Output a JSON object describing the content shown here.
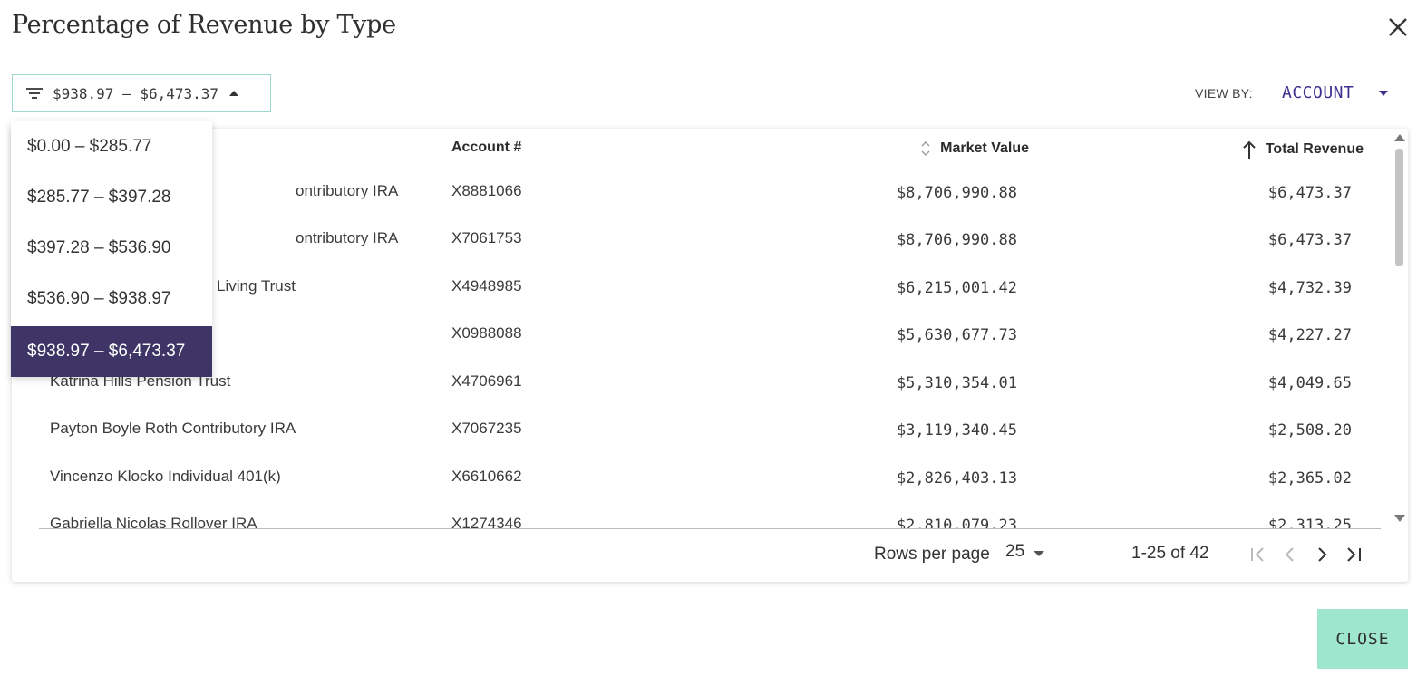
{
  "dialog": {
    "title": "Percentage of Revenue by Type",
    "close_label": "CLOSE"
  },
  "filter": {
    "selected_range": "$938.97 – $6,473.37",
    "options": [
      {
        "label": "$0.00 – $285.77",
        "selected": false
      },
      {
        "label": "$285.77 – $397.28",
        "selected": false
      },
      {
        "label": "$397.28 – $536.90",
        "selected": false
      },
      {
        "label": "$536.90 – $938.97",
        "selected": false
      },
      {
        "label": "$938.97 – $6,473.37",
        "selected": true
      }
    ]
  },
  "view_by": {
    "label": "VIEW BY:",
    "value": "ACCOUNT"
  },
  "table": {
    "headers": {
      "account": "Account #",
      "market_value": "Market Value",
      "total_revenue": "Total Revenue"
    },
    "rows": [
      {
        "name": "ontributory IRA",
        "account": "X8881066",
        "market_value": "$8,706,990.88",
        "total_revenue": "$6,473.37"
      },
      {
        "name": "ontributory IRA",
        "account": "X7061753",
        "market_value": "$8,706,990.88",
        "total_revenue": "$6,473.37"
      },
      {
        "name": "Living Trust",
        "account": "X4948985",
        "market_value": "$6,215,001.42",
        "total_revenue": "$4,732.39"
      },
      {
        "name": "",
        "account": "X0988088",
        "market_value": "$5,630,677.73",
        "total_revenue": "$4,227.27"
      },
      {
        "name": "Katrina Hills Pension Trust",
        "account": "X4706961",
        "market_value": "$5,310,354.01",
        "total_revenue": "$4,049.65"
      },
      {
        "name": "Payton Boyle Roth Contributory IRA",
        "account": "X7067235",
        "market_value": "$3,119,340.45",
        "total_revenue": "$2,508.20"
      },
      {
        "name": "Vincenzo Klocko Individual 401(k)",
        "account": "X6610662",
        "market_value": "$2,826,403.13",
        "total_revenue": "$2,365.02"
      },
      {
        "name": "Gabriella Nicolas Rollover IRA",
        "account": "X1274346",
        "market_value": "$2,810,079.23",
        "total_revenue": "$2,313.25"
      }
    ]
  },
  "pagination": {
    "rows_per_page_label": "Rows per page",
    "rows_per_page": "25",
    "range": "1-25 of 42"
  },
  "colors": {
    "accent": "#3f2d8f",
    "selected_bg": "#3e3566",
    "close_button_bg": "#9fe6cf",
    "filter_border": "#9fd8cf"
  }
}
